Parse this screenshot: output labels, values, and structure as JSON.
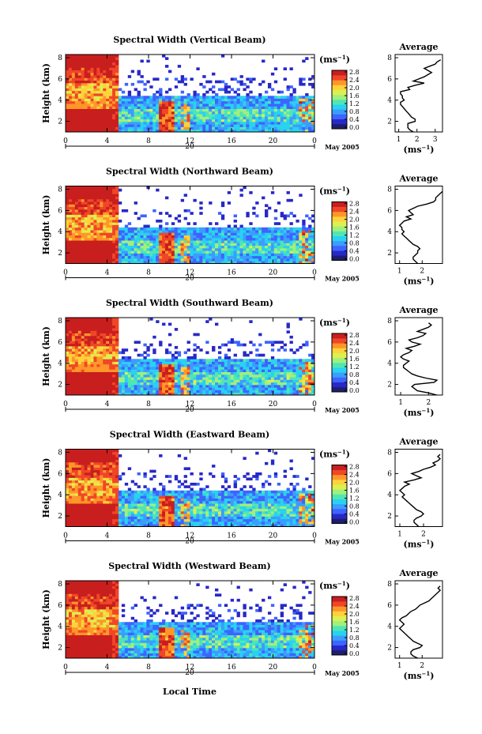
{
  "colors": {
    "colormap": [
      "#1e1e6e",
      "#2828c8",
      "#3c64ff",
      "#3c9cff",
      "#28d2f0",
      "#50e6b4",
      "#a0f07c",
      "#dcf050",
      "#ffd23c",
      "#ff9628",
      "#f04628",
      "#c81e1e"
    ],
    "low": "#323264",
    "trace": "#000000"
  },
  "common": {
    "ylabel": "Height (km)",
    "yticks": [
      "2",
      "4",
      "6",
      "8"
    ],
    "xticks": [
      "0",
      "4",
      "8",
      "12",
      "16",
      "20",
      "0"
    ],
    "day_label": "20",
    "date_label": "May 2005",
    "colorbar_ticks": [
      "0.0",
      "0.4",
      "0.8",
      "1.2",
      "1.6",
      "2.0",
      "2.4",
      "2.8"
    ],
    "colorbar_unit": "(ms",
    "colorbar_exp": "−1",
    "avg_title": "Average",
    "avg_unit": "(ms",
    "avg_exp": "−1",
    "avg_yticks": [
      "2",
      "4",
      "6",
      "8"
    ],
    "xlabel": "Local Time"
  },
  "chart_data": [
    {
      "type": "heatmap",
      "title": "Spectral Width (Vertical Beam)",
      "xlabel": "",
      "ylabel": "Height (km)",
      "xlim": [
        0,
        24
      ],
      "ylim": [
        1,
        8.3
      ],
      "clim": [
        0,
        3.0
      ],
      "avg": {
        "type": "line",
        "title": "Average",
        "xlabel": "(ms−1)",
        "xticks": [
          "1",
          "2",
          "3"
        ],
        "xlim": [
          0.8,
          3.4
        ],
        "x": [
          1.8,
          1.6,
          1.5,
          1.5,
          1.5,
          1.9,
          1.9,
          1.7,
          1.6,
          1.5,
          1.4,
          1.3,
          1.2,
          1.1,
          1.1,
          1.3,
          1.2,
          1.2,
          1.1,
          1.1,
          1.6,
          1.5,
          1.9,
          2.4,
          1.8,
          2.1,
          2.4,
          2.6,
          2.8,
          2.6,
          2.4,
          2.7,
          3.0,
          3.1,
          3.3
        ],
        "y": [
          1.0,
          1.2,
          1.4,
          1.6,
          1.8,
          2.0,
          2.2,
          2.4,
          2.6,
          2.8,
          3.0,
          3.2,
          3.4,
          3.6,
          3.8,
          4.0,
          4.2,
          4.4,
          4.6,
          4.8,
          5.0,
          5.2,
          5.4,
          5.6,
          5.8,
          6.0,
          6.2,
          6.4,
          6.6,
          6.8,
          7.0,
          7.2,
          7.4,
          7.6,
          7.8
        ]
      }
    },
    {
      "type": "heatmap",
      "title": "Spectral Width (Northward Beam)",
      "xlabel": "",
      "ylabel": "Height (km)",
      "xlim": [
        0,
        24
      ],
      "ylim": [
        1,
        8.3
      ],
      "clim": [
        0,
        3.0
      ],
      "avg": {
        "type": "line",
        "title": "Average",
        "xlabel": "(ms−1)",
        "xticks": [
          "1",
          "2"
        ],
        "xlim": [
          0.8,
          2.9
        ],
        "x": [
          1.8,
          1.7,
          1.6,
          1.6,
          1.7,
          1.8,
          1.8,
          1.9,
          1.8,
          1.6,
          1.5,
          1.4,
          1.3,
          1.2,
          1.1,
          1.2,
          1.1,
          1.1,
          1.0,
          1.1,
          1.2,
          1.5,
          1.3,
          1.6,
          1.5,
          1.4,
          1.6,
          1.8,
          2.2,
          2.5,
          2.6,
          2.6,
          2.7,
          2.8,
          2.9
        ],
        "y": [
          1.0,
          1.2,
          1.4,
          1.6,
          1.8,
          2.0,
          2.2,
          2.4,
          2.6,
          2.8,
          3.0,
          3.2,
          3.4,
          3.6,
          3.8,
          4.0,
          4.2,
          4.4,
          4.6,
          4.8,
          5.0,
          5.2,
          5.4,
          5.6,
          5.8,
          6.0,
          6.2,
          6.4,
          6.6,
          6.8,
          7.0,
          7.2,
          7.4,
          7.6,
          7.8
        ]
      }
    },
    {
      "type": "heatmap",
      "title": "Spectral Width (Southward Beam)",
      "xlabel": "",
      "ylabel": "Height (km)",
      "xlim": [
        0,
        24
      ],
      "ylim": [
        1,
        8.3
      ],
      "clim": [
        0,
        3.0
      ],
      "avg": {
        "type": "line",
        "title": "Average",
        "xlabel": "(ms−1)",
        "xticks": [
          "1",
          "2"
        ],
        "xlim": [
          0.8,
          2.5
        ],
        "x": [
          2.3,
          2.0,
          1.6,
          1.5,
          1.4,
          1.5,
          2.2,
          2.3,
          1.9,
          1.6,
          1.4,
          1.3,
          1.2,
          1.1,
          1.1,
          1.2,
          1.3,
          1.1,
          1.0,
          1.1,
          1.3,
          1.4,
          1.2,
          1.5,
          1.7,
          1.4,
          1.3,
          1.6,
          1.8,
          1.9,
          1.6,
          1.8,
          2.0,
          2.1,
          2.0
        ],
        "y": [
          1.0,
          1.2,
          1.4,
          1.6,
          1.8,
          2.0,
          2.2,
          2.4,
          2.6,
          2.8,
          3.0,
          3.2,
          3.4,
          3.6,
          3.8,
          4.0,
          4.2,
          4.4,
          4.6,
          4.8,
          5.0,
          5.2,
          5.4,
          5.6,
          5.8,
          6.0,
          6.2,
          6.4,
          6.6,
          6.8,
          7.0,
          7.2,
          7.4,
          7.6,
          7.8
        ]
      }
    },
    {
      "type": "heatmap",
      "title": "Spectral Width (Eastward Beam)",
      "xlabel": "",
      "ylabel": "Height (km)",
      "xlim": [
        0,
        24
      ],
      "ylim": [
        1,
        8.3
      ],
      "clim": [
        0,
        3.0
      ],
      "avg": {
        "type": "line",
        "title": "Average",
        "xlabel": "(ms−1)",
        "xticks": [
          "1",
          "2"
        ],
        "xlim": [
          0.8,
          2.8
        ],
        "x": [
          1.8,
          1.7,
          1.6,
          1.6,
          1.7,
          1.9,
          2.0,
          1.9,
          1.7,
          1.6,
          1.5,
          1.4,
          1.3,
          1.2,
          1.1,
          1.2,
          1.1,
          1.0,
          1.1,
          1.2,
          1.4,
          1.2,
          1.6,
          1.9,
          1.7,
          1.5,
          1.8,
          2.0,
          2.3,
          2.5,
          2.4,
          2.6,
          2.7,
          2.6,
          2.7
        ],
        "y": [
          1.0,
          1.2,
          1.4,
          1.6,
          1.8,
          2.0,
          2.2,
          2.4,
          2.6,
          2.8,
          3.0,
          3.2,
          3.4,
          3.6,
          3.8,
          4.0,
          4.2,
          4.4,
          4.6,
          4.8,
          5.0,
          5.2,
          5.4,
          5.6,
          5.8,
          6.0,
          6.2,
          6.4,
          6.6,
          6.8,
          7.0,
          7.2,
          7.4,
          7.6,
          7.8
        ]
      }
    },
    {
      "type": "heatmap",
      "title": "Spectral Width (Westward Beam)",
      "xlabel": "Local Time",
      "ylabel": "Height (km)",
      "xlim": [
        0,
        24
      ],
      "ylim": [
        1,
        8.3
      ],
      "clim": [
        0,
        3.0
      ],
      "avg": {
        "type": "line",
        "title": "Average",
        "xlabel": "(ms−1)",
        "xticks": [
          "1",
          "2"
        ],
        "xlim": [
          0.8,
          2.9
        ],
        "x": [
          1.8,
          1.6,
          1.5,
          1.5,
          1.6,
          1.9,
          2.0,
          1.8,
          1.6,
          1.5,
          1.4,
          1.3,
          1.2,
          1.1,
          1.0,
          1.1,
          1.2,
          1.1,
          1.0,
          1.1,
          1.3,
          1.4,
          1.5,
          1.7,
          1.8,
          1.9,
          2.1,
          2.3,
          2.4,
          2.5,
          2.6,
          2.7,
          2.8,
          2.7,
          2.8
        ],
        "y": [
          1.0,
          1.2,
          1.4,
          1.6,
          1.8,
          2.0,
          2.2,
          2.4,
          2.6,
          2.8,
          3.0,
          3.2,
          3.4,
          3.6,
          3.8,
          4.0,
          4.2,
          4.4,
          4.6,
          4.8,
          5.0,
          5.2,
          5.4,
          5.6,
          5.8,
          6.0,
          6.2,
          6.4,
          6.6,
          6.8,
          7.0,
          7.2,
          7.4,
          7.6,
          7.8
        ]
      }
    }
  ]
}
